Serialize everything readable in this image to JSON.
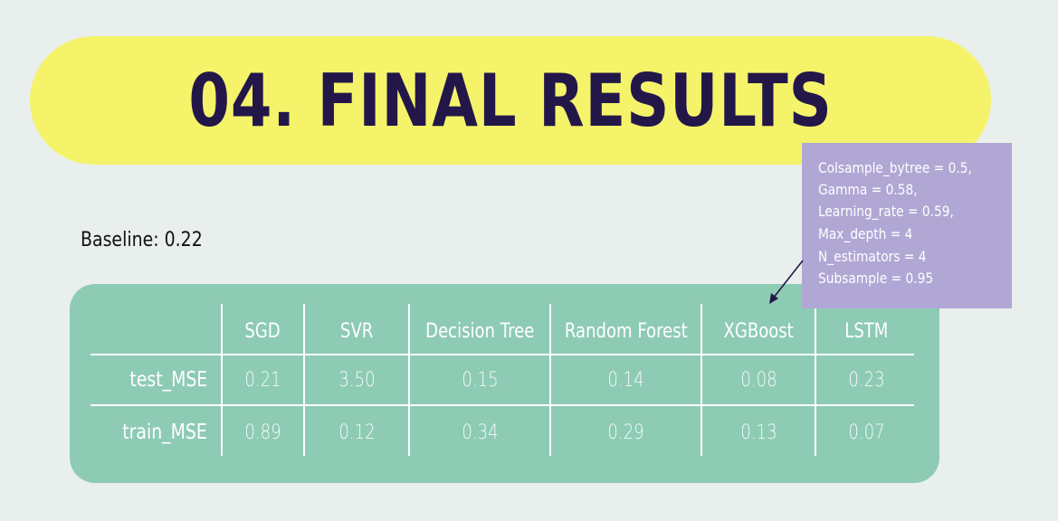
{
  "title": "04. FINAL RESULTS",
  "baseline": "Baseline: 0.22",
  "params": [
    "Colsample_bytree = 0.5,",
    "Gamma = 0.58,",
    "Learning_rate = 0.59,",
    "Max_depth =  4",
    "N_estimators = 4",
    "Subsample =  0.95"
  ],
  "table": {
    "columns": [
      "SGD",
      "SVR",
      "Decision Tree",
      "Random Forest",
      "XGBoost",
      "LSTM"
    ],
    "rows": [
      {
        "label": "test_MSE",
        "values": [
          "0.21",
          "3.50",
          "0.15",
          "0.14",
          "0.08",
          "0.23"
        ]
      },
      {
        "label": "train_MSE",
        "values": [
          "0.89",
          "0.12",
          "0.34",
          "0.29",
          "0.13",
          "0.07"
        ]
      }
    ]
  },
  "colors": {
    "background": "#e9efec",
    "title_pill": "#f5f36a",
    "title_text": "#23174a",
    "table_panel": "#8ecbb4",
    "params_box": "#b1a7d4"
  }
}
